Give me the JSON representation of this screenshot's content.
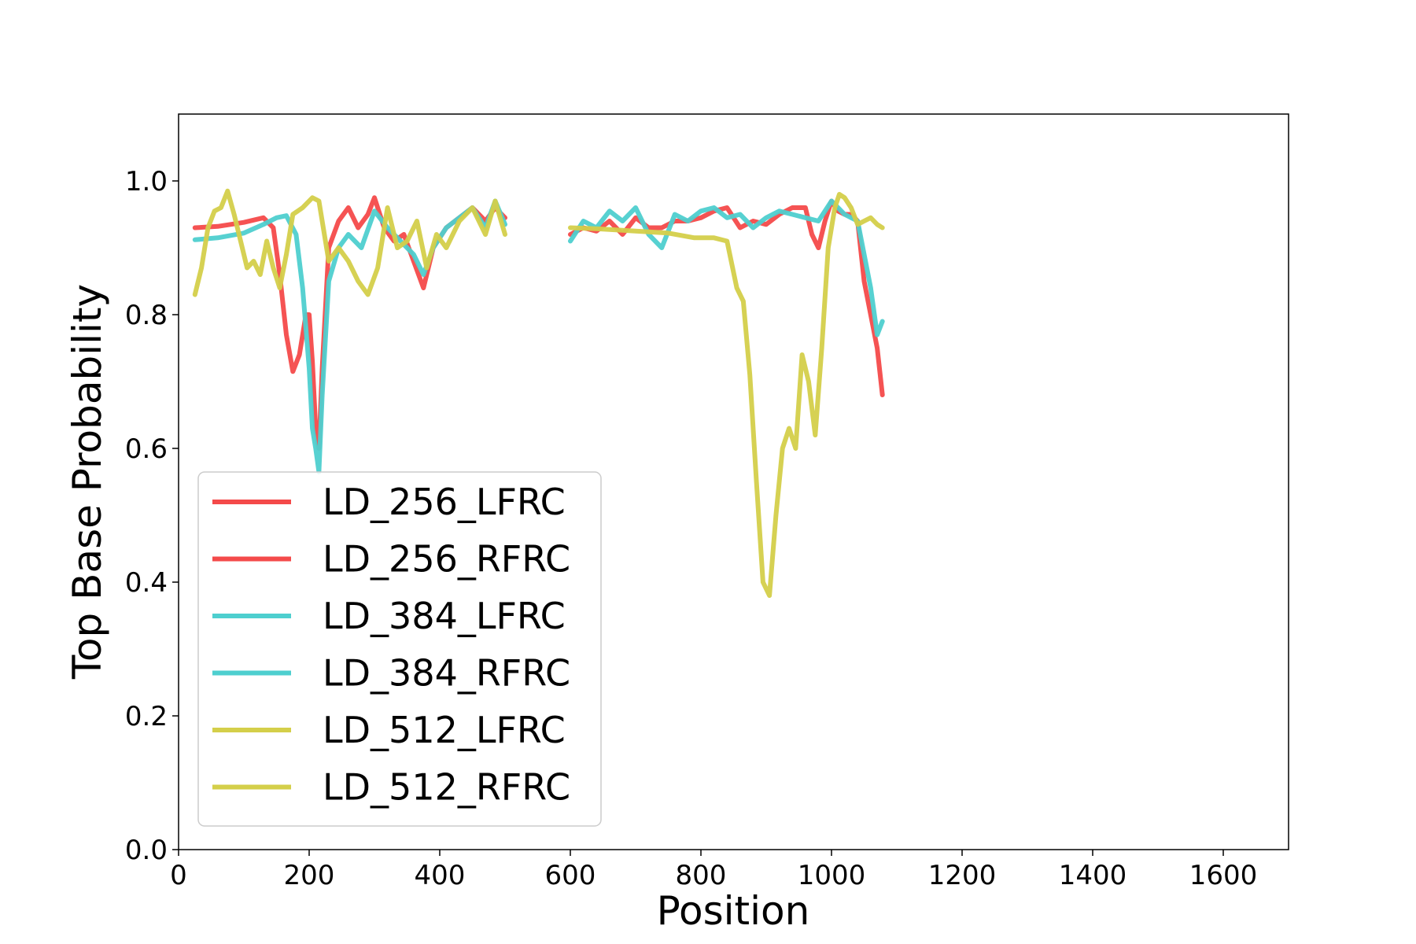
{
  "chart_data": {
    "type": "line",
    "title": "",
    "xlabel": "Position",
    "ylabel": "Top Base Probability",
    "xlim": [
      0,
      1700
    ],
    "ylim": [
      0,
      1.1
    ],
    "xticks": [
      "0",
      "200",
      "400",
      "600",
      "800",
      "1000",
      "1200",
      "1400",
      "1600"
    ],
    "yticks": [
      "0.0",
      "0.2",
      "0.4",
      "0.6",
      "0.8",
      "1.0"
    ],
    "xtick_values": [
      0,
      200,
      400,
      600,
      800,
      1000,
      1200,
      1400,
      1600
    ],
    "ytick_values": [
      0,
      0.2,
      0.4,
      0.6,
      0.8,
      1.0
    ],
    "grid": false,
    "legend": "lower-left",
    "series": [
      {
        "name": "LD_256_LFRC",
        "color": "#f44a4a",
        "x": [
          25,
          60,
          100,
          130,
          145,
          155,
          165,
          175,
          185,
          195,
          200,
          205,
          210,
          215,
          220,
          230,
          245,
          260,
          275,
          290,
          300,
          315,
          330,
          345,
          360,
          375,
          390,
          410,
          430,
          450,
          470,
          485,
          500
        ],
        "y": [
          0.93,
          0.932,
          0.938,
          0.945,
          0.93,
          0.86,
          0.77,
          0.715,
          0.74,
          0.8,
          0.8,
          0.73,
          0.63,
          0.6,
          0.72,
          0.9,
          0.94,
          0.96,
          0.93,
          0.95,
          0.975,
          0.93,
          0.91,
          0.92,
          0.88,
          0.84,
          0.9,
          0.93,
          0.945,
          0.96,
          0.94,
          0.96,
          0.945
        ]
      },
      {
        "name": "LD_256_RFRC",
        "color": "#f44a4a",
        "x": [
          600,
          620,
          640,
          660,
          680,
          700,
          720,
          740,
          760,
          780,
          800,
          820,
          840,
          860,
          880,
          900,
          920,
          940,
          960,
          970,
          980,
          990,
          1000,
          1010,
          1020,
          1030,
          1040,
          1050,
          1060,
          1070,
          1078
        ],
        "y": [
          0.92,
          0.93,
          0.925,
          0.94,
          0.92,
          0.945,
          0.93,
          0.93,
          0.94,
          0.94,
          0.945,
          0.955,
          0.96,
          0.93,
          0.94,
          0.935,
          0.95,
          0.96,
          0.96,
          0.92,
          0.9,
          0.94,
          0.97,
          0.955,
          0.95,
          0.95,
          0.94,
          0.85,
          0.8,
          0.75,
          0.68
        ]
      },
      {
        "name": "LD_384_LFRC",
        "color": "#4ecfcf",
        "x": [
          25,
          60,
          100,
          130,
          150,
          165,
          180,
          190,
          200,
          205,
          210,
          215,
          220,
          230,
          245,
          260,
          280,
          300,
          320,
          340,
          360,
          375,
          390,
          410,
          430,
          450,
          470,
          485,
          500
        ],
        "y": [
          0.912,
          0.915,
          0.922,
          0.935,
          0.945,
          0.948,
          0.92,
          0.84,
          0.72,
          0.63,
          0.6,
          0.565,
          0.68,
          0.85,
          0.9,
          0.92,
          0.9,
          0.955,
          0.93,
          0.91,
          0.89,
          0.86,
          0.9,
          0.93,
          0.945,
          0.96,
          0.93,
          0.97,
          0.935
        ]
      },
      {
        "name": "LD_384_RFRC",
        "color": "#4ecfcf",
        "x": [
          600,
          620,
          640,
          660,
          680,
          700,
          720,
          740,
          760,
          780,
          800,
          820,
          840,
          860,
          880,
          900,
          920,
          940,
          960,
          980,
          1000,
          1020,
          1040,
          1050,
          1060,
          1070,
          1078
        ],
        "y": [
          0.91,
          0.94,
          0.93,
          0.955,
          0.94,
          0.96,
          0.92,
          0.9,
          0.95,
          0.94,
          0.955,
          0.96,
          0.945,
          0.95,
          0.93,
          0.945,
          0.955,
          0.95,
          0.945,
          0.94,
          0.97,
          0.95,
          0.94,
          0.89,
          0.84,
          0.77,
          0.79
        ]
      },
      {
        "name": "LD_512_LFRC",
        "color": "#d4cf4a",
        "x": [
          25,
          35,
          45,
          55,
          65,
          75,
          85,
          95,
          105,
          115,
          125,
          135,
          145,
          155,
          165,
          175,
          190,
          205,
          215,
          230,
          245,
          260,
          275,
          290,
          305,
          320,
          335,
          350,
          365,
          380,
          395,
          410,
          430,
          450,
          470,
          485,
          500
        ],
        "y": [
          0.83,
          0.87,
          0.93,
          0.955,
          0.96,
          0.985,
          0.95,
          0.91,
          0.87,
          0.88,
          0.86,
          0.91,
          0.87,
          0.84,
          0.89,
          0.95,
          0.96,
          0.975,
          0.97,
          0.88,
          0.9,
          0.88,
          0.85,
          0.83,
          0.87,
          0.96,
          0.9,
          0.91,
          0.94,
          0.87,
          0.92,
          0.9,
          0.94,
          0.96,
          0.92,
          0.97,
          0.92
        ]
      },
      {
        "name": "LD_512_RFRC",
        "color": "#d4cf4a",
        "x": [
          600,
          650,
          700,
          750,
          790,
          820,
          840,
          855,
          865,
          875,
          885,
          895,
          905,
          915,
          925,
          935,
          945,
          955,
          965,
          975,
          985,
          995,
          1005,
          1012,
          1020,
          1030,
          1040,
          1050,
          1060,
          1070,
          1078
        ],
        "y": [
          0.93,
          0.928,
          0.925,
          0.922,
          0.915,
          0.915,
          0.91,
          0.84,
          0.82,
          0.71,
          0.55,
          0.4,
          0.38,
          0.5,
          0.6,
          0.63,
          0.6,
          0.74,
          0.7,
          0.62,
          0.75,
          0.9,
          0.96,
          0.98,
          0.975,
          0.96,
          0.935,
          0.94,
          0.945,
          0.935,
          0.93
        ]
      }
    ]
  }
}
